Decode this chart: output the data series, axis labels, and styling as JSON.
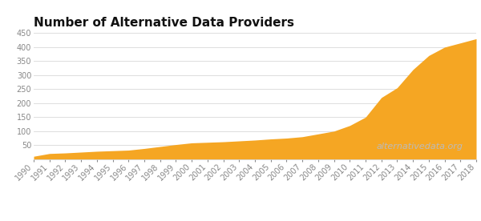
{
  "title": "Number of Alternative Data Providers",
  "years": [
    1990,
    1991,
    1992,
    1993,
    1994,
    1995,
    1996,
    1997,
    1998,
    1999,
    2000,
    2001,
    2002,
    2003,
    2004,
    2005,
    2006,
    2007,
    2008,
    2009,
    2010,
    2011,
    2012,
    2013,
    2014,
    2015,
    2016,
    2017,
    2018
  ],
  "values": [
    10,
    20,
    22,
    25,
    28,
    30,
    32,
    38,
    45,
    52,
    58,
    60,
    62,
    65,
    68,
    72,
    75,
    80,
    90,
    100,
    120,
    150,
    220,
    255,
    320,
    370,
    400,
    415,
    430
  ],
  "fill_color": "#F5A623",
  "fill_alpha": 1.0,
  "background_color": "#FFFFFF",
  "grid_color": "#D8D8D8",
  "title_fontsize": 11,
  "tick_fontsize": 7,
  "ylim": [
    0,
    450
  ],
  "yticks": [
    50,
    100,
    150,
    200,
    250,
    300,
    350,
    400,
    450
  ],
  "watermark": "alternativedata.org",
  "watermark_color": "#BBBBBB",
  "watermark_fontsize": 8
}
